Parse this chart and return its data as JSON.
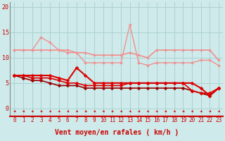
{
  "background_color": "#ceeaea",
  "grid_color": "#aacece",
  "xlabel": "Vent moyen/en rafales ( km/h )",
  "xlabel_color": "#cc0000",
  "ylabel_ticks": [
    0,
    5,
    10,
    15,
    20
  ],
  "ylim": [
    -1.5,
    21
  ],
  "xlim": [
    -0.5,
    23.5
  ],
  "x_labels": [
    "0",
    "1",
    "2",
    "3",
    "4",
    "5",
    "6",
    "7",
    "8",
    "9",
    "10",
    "11",
    "12",
    "13",
    "14",
    "15",
    "16",
    "17",
    "18",
    "19",
    "20",
    "21",
    "22",
    "23"
  ],
  "series": [
    {
      "y": [
        11.5,
        11.5,
        11.5,
        11.5,
        11.5,
        11.5,
        11.5,
        11.0,
        11.0,
        10.5,
        10.5,
        10.5,
        10.5,
        11.0,
        10.5,
        10.0,
        11.5,
        11.5,
        11.5,
        11.5,
        11.5,
        11.5,
        11.5,
        9.5
      ],
      "color": "#f09090",
      "lw": 1.2,
      "marker": "D",
      "ms": 2.0,
      "zorder": 2
    },
    {
      "y": [
        11.5,
        11.5,
        11.5,
        14.0,
        13.0,
        11.5,
        11.0,
        11.0,
        9.0,
        9.0,
        9.0,
        9.0,
        9.0,
        16.5,
        9.0,
        8.5,
        9.0,
        9.0,
        9.0,
        9.0,
        9.0,
        9.5,
        9.5,
        8.5
      ],
      "color": "#f09090",
      "lw": 1.0,
      "marker": "D",
      "ms": 2.0,
      "zorder": 2
    },
    {
      "y": [
        6.5,
        6.5,
        6.5,
        6.5,
        6.5,
        6.0,
        5.5,
        8.0,
        6.5,
        5.0,
        5.0,
        5.0,
        5.0,
        5.0,
        5.0,
        5.0,
        5.0,
        5.0,
        5.0,
        5.0,
        5.0,
        4.0,
        2.5,
        4.0
      ],
      "color": "#dd0000",
      "lw": 1.5,
      "marker": "D",
      "ms": 2.5,
      "zorder": 4
    },
    {
      "y": [
        6.5,
        6.5,
        6.0,
        6.0,
        6.0,
        5.5,
        5.0,
        5.0,
        4.5,
        4.5,
        4.5,
        4.5,
        4.5,
        5.0,
        5.0,
        5.0,
        5.0,
        5.0,
        5.0,
        5.0,
        3.5,
        3.0,
        3.0,
        4.0
      ],
      "color": "#dd0000",
      "lw": 1.2,
      "marker": "D",
      "ms": 2.5,
      "zorder": 4
    },
    {
      "y": [
        6.5,
        6.0,
        5.5,
        5.5,
        5.0,
        4.5,
        4.5,
        4.5,
        4.0,
        4.0,
        4.0,
        4.0,
        4.0,
        4.0,
        4.0,
        4.0,
        4.0,
        4.0,
        4.0,
        4.0,
        3.5,
        3.0,
        2.5,
        4.0
      ],
      "color": "#990000",
      "lw": 1.2,
      "marker": "D",
      "ms": 2.5,
      "zorder": 3
    }
  ],
  "tick_fontsize": 5.5,
  "label_fontsize": 7,
  "arrow_color": "#cc0000"
}
